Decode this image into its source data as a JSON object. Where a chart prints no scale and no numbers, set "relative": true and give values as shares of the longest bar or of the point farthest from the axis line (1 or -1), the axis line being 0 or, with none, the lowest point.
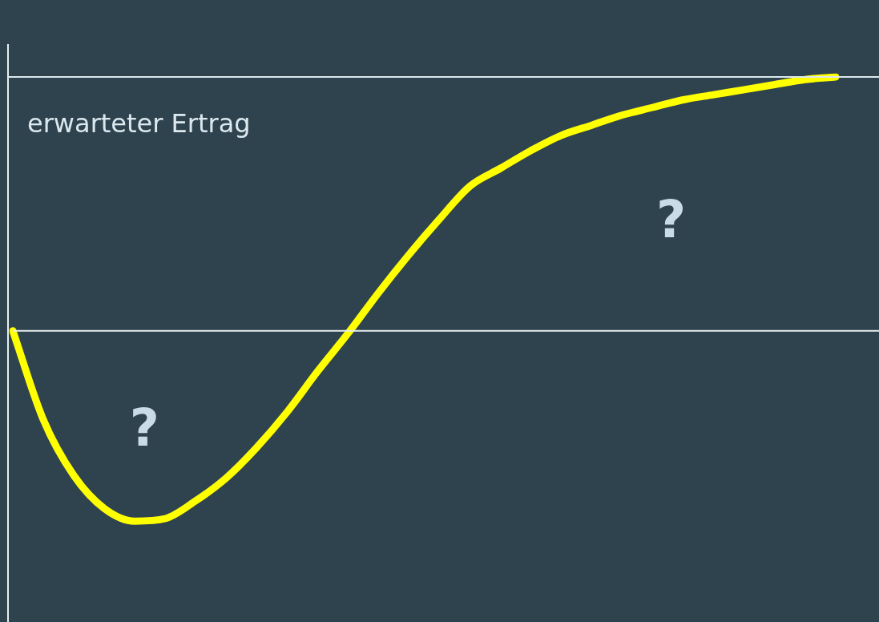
{
  "chart_data": {
    "type": "line",
    "relative": true,
    "categories": [
      null,
      null,
      null,
      null,
      null,
      null,
      null,
      null,
      null,
      null,
      null,
      null,
      null,
      null,
      null,
      null,
      null,
      null,
      null,
      null,
      null,
      null,
      null,
      null,
      null,
      null,
      null,
      null
    ],
    "series": [
      {
        "color": "#ffff00",
        "values": [
          0,
          -0.35,
          -0.57,
          -0.7,
          -0.75,
          -0.74,
          -0.67,
          -0.58,
          -0.46,
          -0.32,
          -0.16,
          -0.01,
          0.15,
          0.3,
          0.44,
          0.57,
          0.64,
          0.71,
          0.77,
          0.81,
          0.85,
          0.88,
          0.91,
          0.93,
          0.95,
          0.97,
          0.99,
          1
        ]
      }
    ],
    "ref_lines": [
      {
        "axis": "y",
        "value": 1,
        "label": "erwarteter Ertrag",
        "color": "#dce8ee"
      }
    ],
    "annotations": [
      "?",
      "?"
    ],
    "legend": false,
    "marker": "none",
    "line_style": "solid"
  }
}
